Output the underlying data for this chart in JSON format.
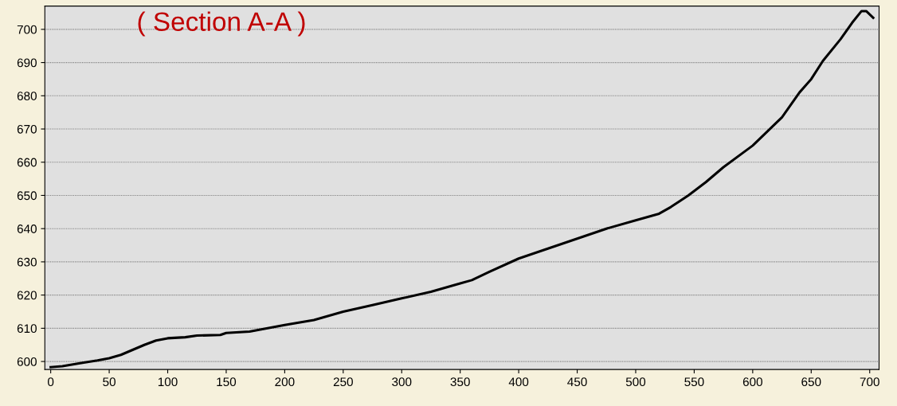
{
  "chart_data": {
    "type": "line",
    "title": "( Section A-A )",
    "x": [
      0,
      10,
      25,
      40,
      50,
      60,
      70,
      80,
      90,
      100,
      115,
      125,
      145,
      150,
      170,
      200,
      225,
      250,
      275,
      300,
      325,
      350,
      360,
      375,
      400,
      425,
      450,
      475,
      500,
      520,
      530,
      545,
      560,
      575,
      600,
      625,
      640,
      650,
      660,
      675,
      685,
      693,
      697,
      703
    ],
    "series": [
      {
        "color": "#000000",
        "values": [
          598.3,
          598.6,
          599.5,
          600.3,
          601,
          602,
          603.5,
          605,
          606.3,
          607,
          607.3,
          607.8,
          608,
          608.6,
          609,
          611,
          612.5,
          615,
          617,
          619,
          621,
          623.5,
          624.5,
          627,
          631,
          634,
          637,
          640,
          642.5,
          644.5,
          646.5,
          650,
          654,
          658.5,
          665,
          673.5,
          681,
          685,
          690.5,
          697,
          702,
          705.5,
          705.5,
          703.5
        ]
      }
    ],
    "xlim": [
      -5,
      708
    ],
    "ylim": [
      597.6,
      707
    ],
    "xticks": [
      0,
      50,
      100,
      150,
      200,
      250,
      300,
      350,
      400,
      450,
      500,
      550,
      600,
      650,
      700
    ],
    "yticks": [
      600,
      610,
      620,
      630,
      640,
      650,
      660,
      670,
      680,
      690,
      700
    ],
    "grid": "y",
    "marker": "none",
    "line_style": "solid"
  }
}
